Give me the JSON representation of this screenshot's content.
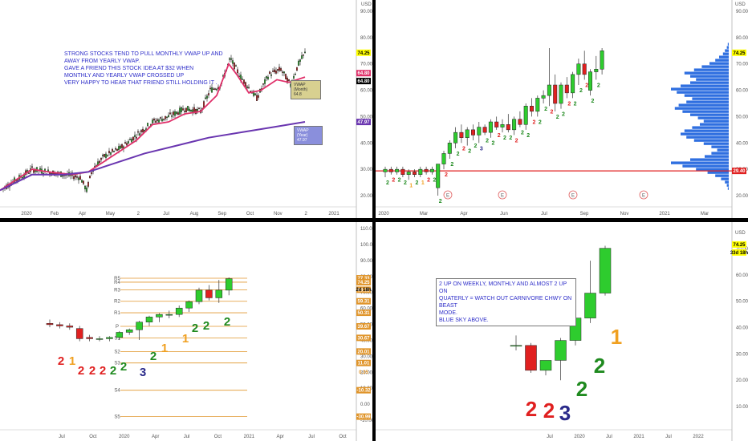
{
  "colors": {
    "up": "#2ecc2e",
    "down": "#e02020",
    "wick": "#333333",
    "vwap_month": "#e0306a",
    "vwap_year": "#6a36b0",
    "note": "#2f2fc9",
    "pivot": "#e0952b",
    "poc": "#e02020",
    "profile": "#2f6fe0",
    "count_red": "#e02020",
    "count_orange": "#f0a020",
    "count_green": "#1f8a1f",
    "count_navy": "#2a2a8a"
  },
  "panels": {
    "top_left": {
      "currency": "USD",
      "note": "STRONG STOCKS TEND TO PULL MONTHLY VWAP UP AND\nAWAY FROM YEARLY VWAP.\nGAVE A FRIEND THIS STOCK IDEA AT $32 WHEN\nMONTHLY AND YEARLY VWAP CROSSED UP\nVERY HAPPY TO HEAR THAT FRIEND STILL HOLDING IT .",
      "price_ticks": [
        "90.00",
        "80.00",
        "70.00",
        "60.00",
        "50.00",
        "40.00",
        "30.00",
        "20.00"
      ],
      "time_ticks": [
        "2020",
        "Feb",
        "Apr",
        "May",
        "2",
        "Jul",
        "Aug",
        "Sep",
        "Oct",
        "Nov",
        "2",
        "2021"
      ],
      "price_tags": [
        {
          "text": "74.25",
          "bg": "#ffff00",
          "fg": "#000000"
        },
        {
          "text": "64.80",
          "bg": "#e0306a",
          "fg": "#ffffff"
        },
        {
          "text": "64.80",
          "bg": "#000000",
          "fg": "#ffffff"
        },
        {
          "text": "47.97",
          "bg": "#6a36b0",
          "fg": "#ffffff"
        }
      ],
      "vwap_month_label": "VWAP (Month)\n64.8",
      "vwap_year_label": "VWAP (Year)\n47.97"
    },
    "top_right": {
      "currency": "USD",
      "price_ticks": [
        "90.00",
        "80.00",
        "70.00",
        "60.00",
        "50.00",
        "40.00",
        "30.00",
        "20.00"
      ],
      "time_ticks": [
        "2020",
        "Mar",
        "Apr",
        "Jun",
        "Jul",
        "Sep",
        "Nov",
        "2021",
        "Mar"
      ],
      "price_tags": [
        {
          "text": "74.25",
          "bg": "#ffff00",
          "fg": "#000000"
        },
        {
          "text": "29.40",
          "bg": "#e02020",
          "fg": "#ffffff"
        }
      ],
      "event_markers": [
        "E",
        "E",
        "E",
        "E"
      ],
      "counts": [
        "2",
        "2",
        "2",
        "2",
        "1",
        "2",
        "1",
        "2",
        "2",
        "2",
        "2",
        "2",
        "2",
        "2",
        "2",
        "2",
        "3",
        "2",
        "2",
        "2",
        "2",
        "2",
        "2",
        "2",
        "2",
        "2",
        "2",
        "2",
        "2",
        "2",
        "2",
        "2",
        "2",
        "2",
        "2",
        "2",
        "2"
      ]
    },
    "bottom_left": {
      "price_ticks": [
        "110.00",
        "100.00",
        "90.00",
        "80.00",
        "70.00",
        "60.00",
        "50.00",
        "40.00",
        "30.00",
        "20.00",
        "10.00",
        "0.00",
        "-10.00"
      ],
      "time_ticks": [
        "Jul",
        "Oct",
        "2020",
        "Apr",
        "Jul",
        "Oct",
        "2021",
        "Apr",
        "Jul",
        "Oct"
      ],
      "pivots": [
        {
          "label": "R5",
          "value": "77.33"
        },
        {
          "label": "R4",
          "value": "74.25"
        },
        {
          "label": "R3",
          "value": "68.32"
        },
        {
          "label": "R2",
          "value": "59.31"
        },
        {
          "label": "R1",
          "value": "50.31"
        },
        {
          "label": "P",
          "value": "39.67"
        },
        {
          "label": "S1",
          "value": "30.67"
        },
        {
          "label": "S2",
          "value": "20.01"
        },
        {
          "label": "S3",
          "value": "11.01"
        },
        {
          "label": "S4",
          "value": "-10.32"
        },
        {
          "label": "S5",
          "value": "-30.99"
        }
      ],
      "extra_tags": [
        {
          "text": "2d 18h"
        },
        {
          "text": "0.35"
        }
      ],
      "counts": [
        {
          "text": "2",
          "color": "count_red"
        },
        {
          "text": "1",
          "color": "count_orange"
        },
        {
          "text": "2",
          "color": "count_red"
        },
        {
          "text": "2",
          "color": "count_red"
        },
        {
          "text": "2",
          "color": "count_red"
        },
        {
          "text": "2",
          "color": "count_green"
        },
        {
          "text": "2",
          "color": "count_green"
        },
        {
          "text": "3",
          "color": "count_navy"
        },
        {
          "text": "2",
          "color": "count_green"
        },
        {
          "text": "1",
          "color": "count_orange"
        },
        {
          "text": "1",
          "color": "count_orange"
        },
        {
          "text": "2",
          "color": "count_green"
        },
        {
          "text": "2",
          "color": "count_green"
        },
        {
          "text": "2",
          "color": "count_green"
        }
      ]
    },
    "bottom_right": {
      "currency": "USD",
      "note": "2 UP ON WEEKLY, MONTHLY AND ALMOST 2 UP ON\nQUATERLY = WATCH OUT CARNIVORE CHWY ON BEAST\nMODE.\nBLUE SKY ABOVE.",
      "price_ticks": [
        "70.00",
        "60.00",
        "50.00",
        "40.00",
        "30.00",
        "20.00",
        "10.00"
      ],
      "time_ticks": [
        "Jul",
        "2020",
        "Jul",
        "2021",
        "Jul",
        "2022"
      ],
      "price_tags": [
        {
          "text": "74.25",
          "bg": "#ffff00",
          "fg": "#000000"
        },
        {
          "text": "33d 18h",
          "bg": "#ffff00",
          "fg": "#000000"
        }
      ],
      "counts": [
        {
          "text": "2",
          "color": "count_red"
        },
        {
          "text": "2",
          "color": "count_red"
        },
        {
          "text": "3",
          "color": "count_navy"
        },
        {
          "text": "2",
          "color": "count_green"
        },
        {
          "text": "2",
          "color": "count_green"
        },
        {
          "text": "1",
          "color": "count_orange"
        }
      ]
    }
  },
  "chart_data": [
    {
      "type": "candlestick",
      "title": "",
      "timeframe": "daily",
      "x_range": [
        "2020",
        "2021"
      ],
      "ylim": [
        15,
        95
      ],
      "series": [
        {
          "name": "VWAP (Month)",
          "last": 64.8
        },
        {
          "name": "VWAP (Year)",
          "last": 47.97
        }
      ],
      "last_price": 74.25
    },
    {
      "type": "candlestick",
      "timeframe": "weekly",
      "ylim": [
        15,
        95
      ],
      "last_price": 74.25,
      "volume_profile_poc": 29.4,
      "candles": [
        {
          "o": 29,
          "h": 31,
          "l": 27,
          "c": 30
        },
        {
          "o": 30,
          "h": 31,
          "l": 28,
          "c": 29
        },
        {
          "o": 29,
          "h": 31,
          "l": 28,
          "c": 30
        },
        {
          "o": 30,
          "h": 31,
          "l": 27,
          "c": 28
        },
        {
          "o": 28,
          "h": 30,
          "l": 26,
          "c": 29
        },
        {
          "o": 29,
          "h": 30,
          "l": 27,
          "c": 28
        },
        {
          "o": 28,
          "h": 31,
          "l": 27,
          "c": 30
        },
        {
          "o": 30,
          "h": 31,
          "l": 28,
          "c": 29
        },
        {
          "o": 29,
          "h": 31,
          "l": 28,
          "c": 30
        },
        {
          "o": 23,
          "h": 32,
          "l": 20,
          "c": 32
        },
        {
          "o": 32,
          "h": 37,
          "l": 30,
          "c": 36
        },
        {
          "o": 36,
          "h": 41,
          "l": 34,
          "c": 40
        },
        {
          "o": 40,
          "h": 46,
          "l": 38,
          "c": 44
        },
        {
          "o": 44,
          "h": 47,
          "l": 40,
          "c": 42
        },
        {
          "o": 42,
          "h": 46,
          "l": 39,
          "c": 45
        },
        {
          "o": 45,
          "h": 47,
          "l": 41,
          "c": 43
        },
        {
          "o": 43,
          "h": 48,
          "l": 40,
          "c": 46
        },
        {
          "o": 46,
          "h": 47,
          "l": 43,
          "c": 44
        },
        {
          "o": 44,
          "h": 49,
          "l": 42,
          "c": 48
        },
        {
          "o": 48,
          "h": 50,
          "l": 45,
          "c": 46
        },
        {
          "o": 46,
          "h": 49,
          "l": 44,
          "c": 47
        },
        {
          "o": 47,
          "h": 51,
          "l": 44,
          "c": 45
        },
        {
          "o": 45,
          "h": 50,
          "l": 43,
          "c": 49
        },
        {
          "o": 49,
          "h": 52,
          "l": 46,
          "c": 47
        },
        {
          "o": 47,
          "h": 55,
          "l": 45,
          "c": 54
        },
        {
          "o": 54,
          "h": 57,
          "l": 50,
          "c": 52
        },
        {
          "o": 52,
          "h": 58,
          "l": 50,
          "c": 57
        },
        {
          "o": 57,
          "h": 60,
          "l": 55,
          "c": 58
        },
        {
          "o": 58,
          "h": 76,
          "l": 54,
          "c": 62
        },
        {
          "o": 62,
          "h": 66,
          "l": 52,
          "c": 55
        },
        {
          "o": 55,
          "h": 63,
          "l": 53,
          "c": 62
        },
        {
          "o": 62,
          "h": 65,
          "l": 57,
          "c": 59
        },
        {
          "o": 59,
          "h": 67,
          "l": 57,
          "c": 66
        },
        {
          "o": 66,
          "h": 72,
          "l": 62,
          "c": 70
        },
        {
          "o": 70,
          "h": 75,
          "l": 64,
          "c": 66
        },
        {
          "o": 60,
          "h": 68,
          "l": 58,
          "c": 67
        },
        {
          "o": 67,
          "h": 73,
          "l": 64,
          "c": 68
        },
        {
          "o": 68,
          "h": 76,
          "l": 66,
          "c": 75
        }
      ]
    },
    {
      "type": "candlestick",
      "timeframe": "monthly",
      "ylim": [
        -35,
        115
      ],
      "pivot_points": {
        "R5": 77.33,
        "R4": 74.25,
        "R3": 68.32,
        "R2": 59.31,
        "R1": 50.31,
        "P": 39.67,
        "S1": 30.67,
        "S2": 20.01,
        "S3": 11.01,
        "S4": -10.32,
        "S5": -30.99
      },
      "candles": [
        {
          "o": 42,
          "h": 45,
          "l": 39,
          "c": 41
        },
        {
          "o": 41,
          "h": 43,
          "l": 38,
          "c": 40
        },
        {
          "o": 40,
          "h": 42,
          "l": 37,
          "c": 39
        },
        {
          "o": 38,
          "h": 40,
          "l": 28,
          "c": 30
        },
        {
          "o": 31,
          "h": 33,
          "l": 28,
          "c": 30
        },
        {
          "o": 30,
          "h": 32,
          "l": 28,
          "c": 30
        },
        {
          "o": 30,
          "h": 32,
          "l": 28,
          "c": 31
        },
        {
          "o": 31,
          "h": 36,
          "l": 29,
          "c": 35
        },
        {
          "o": 35,
          "h": 38,
          "l": 33,
          "c": 37
        },
        {
          "o": 37,
          "h": 44,
          "l": 29,
          "c": 43
        },
        {
          "o": 43,
          "h": 48,
          "l": 40,
          "c": 47
        },
        {
          "o": 47,
          "h": 50,
          "l": 43,
          "c": 49
        },
        {
          "o": 49,
          "h": 52,
          "l": 46,
          "c": 49
        },
        {
          "o": 49,
          "h": 56,
          "l": 47,
          "c": 54
        },
        {
          "o": 54,
          "h": 60,
          "l": 51,
          "c": 59
        },
        {
          "o": 59,
          "h": 70,
          "l": 57,
          "c": 68
        },
        {
          "o": 68,
          "h": 72,
          "l": 60,
          "c": 62
        },
        {
          "o": 62,
          "h": 76,
          "l": 58,
          "c": 68
        },
        {
          "o": 68,
          "h": 78,
          "l": 64,
          "c": 77
        }
      ]
    },
    {
      "type": "candlestick",
      "timeframe": "quarterly",
      "ylim": [
        5,
        80
      ],
      "last_price": 74.25,
      "candles": [
        {
          "o": 35,
          "h": 39,
          "l": 33,
          "c": 35
        },
        {
          "o": 35,
          "h": 36,
          "l": 24,
          "c": 25
        },
        {
          "o": 25,
          "h": 29,
          "l": 23,
          "c": 29
        },
        {
          "o": 29,
          "h": 38,
          "l": 21,
          "c": 37
        },
        {
          "o": 37,
          "h": 47,
          "l": 35,
          "c": 46
        },
        {
          "o": 46,
          "h": 69,
          "l": 44,
          "c": 56
        },
        {
          "o": 56,
          "h": 75,
          "l": 55,
          "c": 74
        }
      ]
    }
  ]
}
